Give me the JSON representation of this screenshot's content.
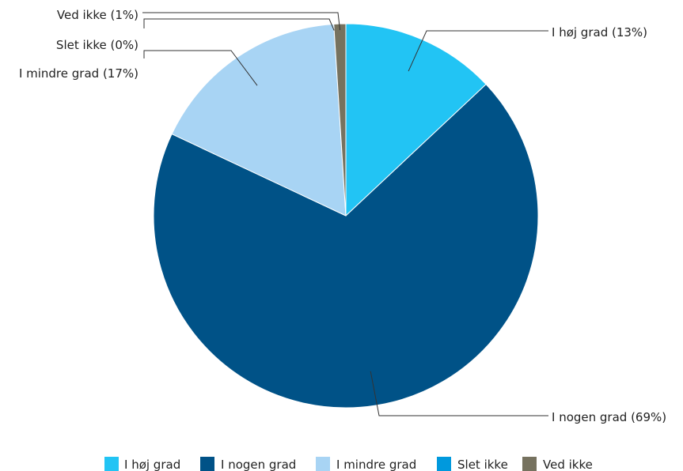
{
  "chart_data": {
    "type": "pie",
    "title": "",
    "slices": [
      {
        "name": "I høj grad",
        "value": 13,
        "label": "I høj grad (13%)",
        "color": "#22c4f4"
      },
      {
        "name": "I nogen grad",
        "value": 69,
        "label": "I nogen grad (69%)",
        "color": "#005287"
      },
      {
        "name": "I mindre grad",
        "value": 17,
        "label": "I mindre grad (17%)",
        "color": "#a8d4f4"
      },
      {
        "name": "Slet ikke",
        "value": 0,
        "label": "Slet ikke (0%)",
        "color": "#0099dd"
      },
      {
        "name": "Ved ikke",
        "value": 1,
        "label": "Ved ikke (1%)",
        "color": "#76725f"
      }
    ],
    "legend_position": "bottom"
  }
}
